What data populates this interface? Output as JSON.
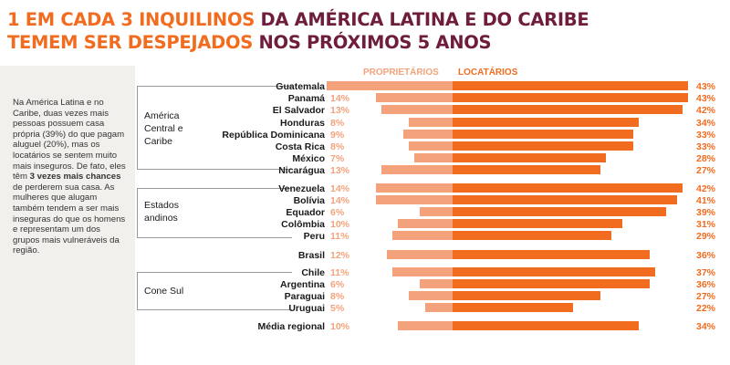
{
  "title": {
    "line1_highlight": "1 EM CADA 3 INQUILINOS",
    "line1_rest": " DA AMÉRICA LATINA E DO CARIBE",
    "line2_highlight": "TEMEM SER DESPEJADOS",
    "line2_rest": " NOS PRÓXIMOS 5 ANOS"
  },
  "side_text": {
    "part1": "Na América Latina e no Caribe, duas vezes mais pessoas possuem casa própria (39%) do que pagam aluguel (20%), mas os locatários se sentem muito mais inseguros. De fato, eles têm ",
    "bold": "3 vezes mais chances",
    "part2": " de perderem sua casa. As mulheres que alugam também tendem a ser mais inseguras do que os homens e representam um dos grupos mais vulneráveis da região."
  },
  "groups": {
    "central": "América Central e Caribe",
    "andean": "Estados andinos",
    "south": "Cone Sul"
  },
  "colors": {
    "owner": "#f4a27c",
    "renter": "#f26c20"
  },
  "chart_data": {
    "type": "bar",
    "orientation": "diverging-horizontal",
    "series": [
      {
        "name": "PROPRIETÁRIOS",
        "values": [
          23,
          14,
          13,
          8,
          9,
          8,
          7,
          13,
          14,
          14,
          6,
          10,
          11,
          12,
          11,
          6,
          8,
          5,
          10
        ]
      },
      {
        "name": "LOCATÁRIOS",
        "values": [
          43,
          43,
          42,
          34,
          33,
          33,
          28,
          27,
          42,
          41,
          39,
          31,
          29,
          36,
          37,
          36,
          27,
          22,
          34
        ]
      }
    ],
    "categories": [
      "Guatemala",
      "Panamá",
      "El Salvador",
      "Honduras",
      "República Dominicana",
      "Costa Rica",
      "México",
      "Nicarágua",
      "Venezuela",
      "Bolívia",
      "Equador",
      "Colômbia",
      "Peru",
      "Brasil",
      "Chile",
      "Argentina",
      "Paraguai",
      "Uruguai",
      "Média regional"
    ],
    "unit": "%"
  }
}
